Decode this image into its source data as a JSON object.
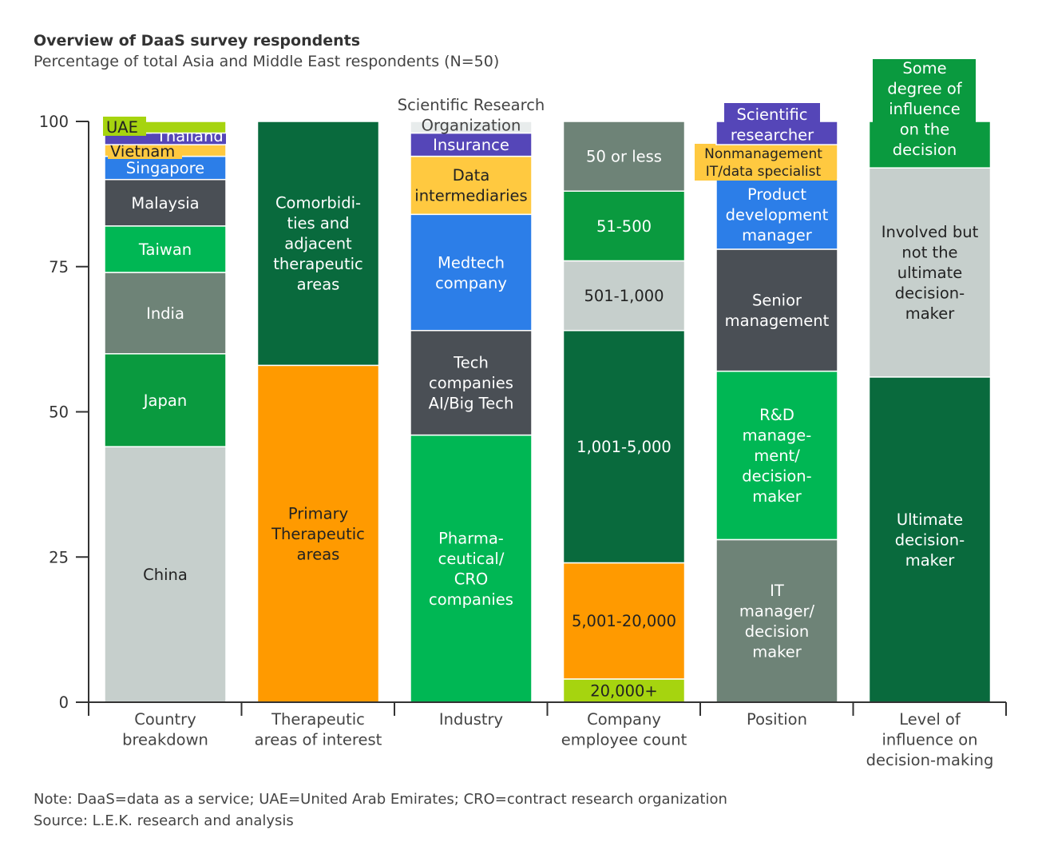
{
  "header": {
    "title": "Overview of DaaS survey respondents",
    "subtitle": "Percentage of total Asia and Middle East respondents (N=50)"
  },
  "footer": {
    "note": "Note: DaaS=data as a service; UAE=United Arab Emirates; CRO=contract research organization",
    "source": "Source: L.E.K. research and analysis"
  },
  "colors": {
    "lime": "#a6d40f",
    "purple": "#5546b8",
    "yellow": "#ffc940",
    "blue": "#2c7ee8",
    "darkgray": "#4a4f55",
    "brightgreen": "#00b754",
    "graygreen": "#6e8377",
    "lightgray": "#c6cfcc",
    "green": "#0a9a3f",
    "darkgreen": "#096a3d",
    "orange": "#ff9a00",
    "paleGray": "#e8ecec"
  },
  "chart_data": {
    "type": "stacked-bar",
    "ylim": [
      0,
      100
    ],
    "yticks": [
      "0",
      "25",
      "50",
      "75",
      "100"
    ],
    "categories": [
      "Country\nbreakdown",
      "Therapeutic\nareas of interest",
      "Industry",
      "Company\nemployee count",
      "Position",
      "Level of\ninfluence on\ndecision-making"
    ],
    "stacks": [
      [
        {
          "label": "China",
          "value": 44,
          "color": "lightgray"
        },
        {
          "label": "Japan",
          "value": 16,
          "color": "green"
        },
        {
          "label": "India",
          "value": 14,
          "color": "graygreen"
        },
        {
          "label": "Taiwan",
          "value": 8,
          "color": "brightgreen"
        },
        {
          "label": "Malaysia",
          "value": 8,
          "color": "darkgray"
        },
        {
          "label": "Singapore",
          "value": 4,
          "color": "blue"
        },
        {
          "label": "Vietnam",
          "value": 2,
          "color": "yellow"
        },
        {
          "label": "Thailand",
          "value": 2,
          "color": "purple"
        },
        {
          "label": "UAE",
          "value": 2,
          "color": "lime"
        }
      ],
      [
        {
          "label": "Primary\nTherapeutic\nareas",
          "value": 58,
          "color": "orange"
        },
        {
          "label": "Comorbidi-\nties and\nadjacent\ntherapeutic\nareas",
          "value": 42,
          "color": "darkgreen"
        }
      ],
      [
        {
          "label": "Pharma-\nceutical/\nCRO\ncompanies",
          "value": 46,
          "color": "brightgreen"
        },
        {
          "label": "Tech\ncompanies\nAI/Big Tech",
          "value": 18,
          "color": "darkgray"
        },
        {
          "label": "Medtech\ncompany",
          "value": 20,
          "color": "blue"
        },
        {
          "label": "Data\nintermediaries",
          "value": 10,
          "color": "yellow"
        },
        {
          "label": "Insurance",
          "value": 4,
          "color": "purple"
        },
        {
          "label": "Scientific Research\nOrganization",
          "value": 2,
          "color": "paleGray"
        }
      ],
      [
        {
          "label": "20,000+",
          "value": 4,
          "color": "lime"
        },
        {
          "label": "5,001-20,000",
          "value": 20,
          "color": "orange"
        },
        {
          "label": "1,001-5,000",
          "value": 40,
          "color": "darkgreen"
        },
        {
          "label": "501-1,000",
          "value": 12,
          "color": "lightgray"
        },
        {
          "label": "51-500",
          "value": 12,
          "color": "green"
        },
        {
          "label": "50 or less",
          "value": 12,
          "color": "graygreen"
        }
      ],
      [
        {
          "label": "IT\nmanager/\ndecision\nmaker",
          "value": 28,
          "color": "graygreen"
        },
        {
          "label": "R&D\nmanage-\nment/\ndecision-\nmaker",
          "value": 29,
          "color": "brightgreen"
        },
        {
          "label": "Senior\nmanagement",
          "value": 21,
          "color": "darkgray"
        },
        {
          "label": "Product\ndevelopment\nmanager",
          "value": 12,
          "color": "blue"
        },
        {
          "label": "Nonmanagement\nIT/data specialist",
          "value": 6,
          "color": "yellow"
        },
        {
          "label": "Scientific\nresearcher",
          "value": 4,
          "color": "purple"
        }
      ],
      [
        {
          "label": "Ultimate\ndecision-\nmaker",
          "value": 56,
          "color": "darkgreen"
        },
        {
          "label": "Involved but\nnot the\nultimate\ndecision-\nmaker",
          "value": 36,
          "color": "lightgray"
        },
        {
          "label": "Some\ndegree of\ninfluence\non the\ndecision",
          "value": 8,
          "color": "green"
        }
      ]
    ]
  }
}
